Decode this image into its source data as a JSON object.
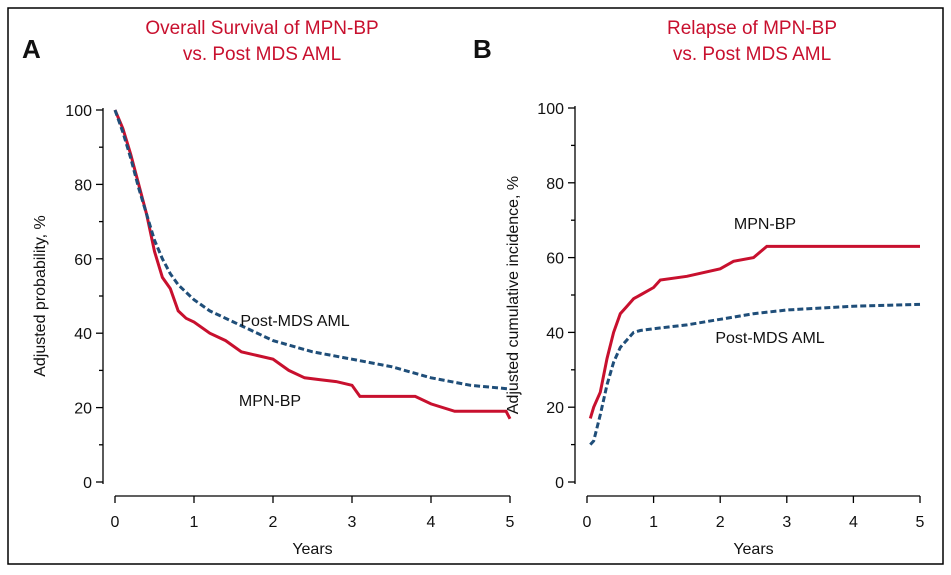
{
  "chart_data": [
    {
      "type": "line",
      "panel_label": "A",
      "title": [
        "Overall Survival of MPN-BP",
        "vs. Post MDS AML"
      ],
      "x_label": "Years",
      "y_label": "Adjusted probability, %",
      "xlim": [
        0,
        5
      ],
      "xticks": [
        0,
        1,
        2,
        3,
        4,
        5
      ],
      "ylim": [
        0,
        100
      ],
      "yticks": [
        0,
        20,
        40,
        60,
        80,
        100
      ],
      "yminorticks": [
        10,
        30,
        50,
        70,
        90
      ],
      "series": [
        {
          "name": "MPN-BP",
          "color": "#c8102e",
          "dashed": false,
          "x": [
            0,
            0.1,
            0.2,
            0.3,
            0.4,
            0.5,
            0.6,
            0.7,
            0.8,
            0.9,
            1.0,
            1.2,
            1.4,
            1.6,
            1.8,
            2.0,
            2.2,
            2.4,
            2.6,
            2.8,
            3.0,
            3.1,
            3.5,
            3.8,
            4.0,
            4.3,
            4.6,
            4.95,
            5.0
          ],
          "values": [
            100,
            95,
            88,
            80,
            72,
            62,
            55,
            52,
            46,
            44,
            43,
            40,
            38,
            35,
            34,
            33,
            30,
            28,
            27.5,
            27,
            26,
            23,
            23,
            23,
            21,
            19,
            19,
            19,
            17
          ]
        },
        {
          "name": "Post-MDS AML",
          "color": "#1f4e79",
          "dashed": true,
          "x": [
            0,
            0.1,
            0.2,
            0.3,
            0.4,
            0.5,
            0.6,
            0.7,
            0.8,
            1.0,
            1.2,
            1.5,
            2.0,
            2.5,
            3.0,
            3.5,
            4.0,
            4.5,
            5.0
          ],
          "values": [
            100,
            94,
            87,
            79,
            72,
            65,
            60,
            56,
            53,
            49,
            46,
            43,
            38,
            35,
            33,
            31,
            28,
            26,
            25
          ]
        }
      ]
    },
    {
      "type": "line",
      "panel_label": "B",
      "title": [
        "Relapse of MPN-BP",
        "vs. Post MDS AML"
      ],
      "x_label": "Years",
      "y_label": "Adjusted cumulative incidence, %",
      "xlim": [
        0,
        5
      ],
      "xticks": [
        0,
        1,
        2,
        3,
        4,
        5
      ],
      "ylim": [
        0,
        100
      ],
      "yticks": [
        0,
        20,
        40,
        60,
        80,
        100
      ],
      "yminorticks": [
        10,
        30,
        50,
        70,
        90
      ],
      "series": [
        {
          "name": "MPN-BP",
          "color": "#c8102e",
          "dashed": false,
          "x": [
            0.05,
            0.1,
            0.2,
            0.3,
            0.4,
            0.5,
            0.6,
            0.7,
            0.8,
            1.0,
            1.1,
            1.5,
            2.0,
            2.2,
            2.5,
            2.7,
            3.0,
            5.0
          ],
          "values": [
            17,
            20,
            24,
            33,
            40,
            45,
            47,
            49,
            50,
            52,
            54,
            55,
            57,
            59,
            60,
            63,
            63,
            63
          ]
        },
        {
          "name": "Post-MDS AML",
          "color": "#1f4e79",
          "dashed": true,
          "x": [
            0.05,
            0.1,
            0.2,
            0.3,
            0.4,
            0.5,
            0.6,
            0.7,
            0.8,
            1.0,
            1.5,
            2.0,
            2.5,
            3.0,
            4.0,
            5.0
          ],
          "values": [
            10,
            11,
            18,
            26,
            32,
            36,
            38,
            40,
            40.5,
            41,
            42,
            43.5,
            45,
            46,
            47,
            47.5
          ]
        }
      ]
    }
  ]
}
